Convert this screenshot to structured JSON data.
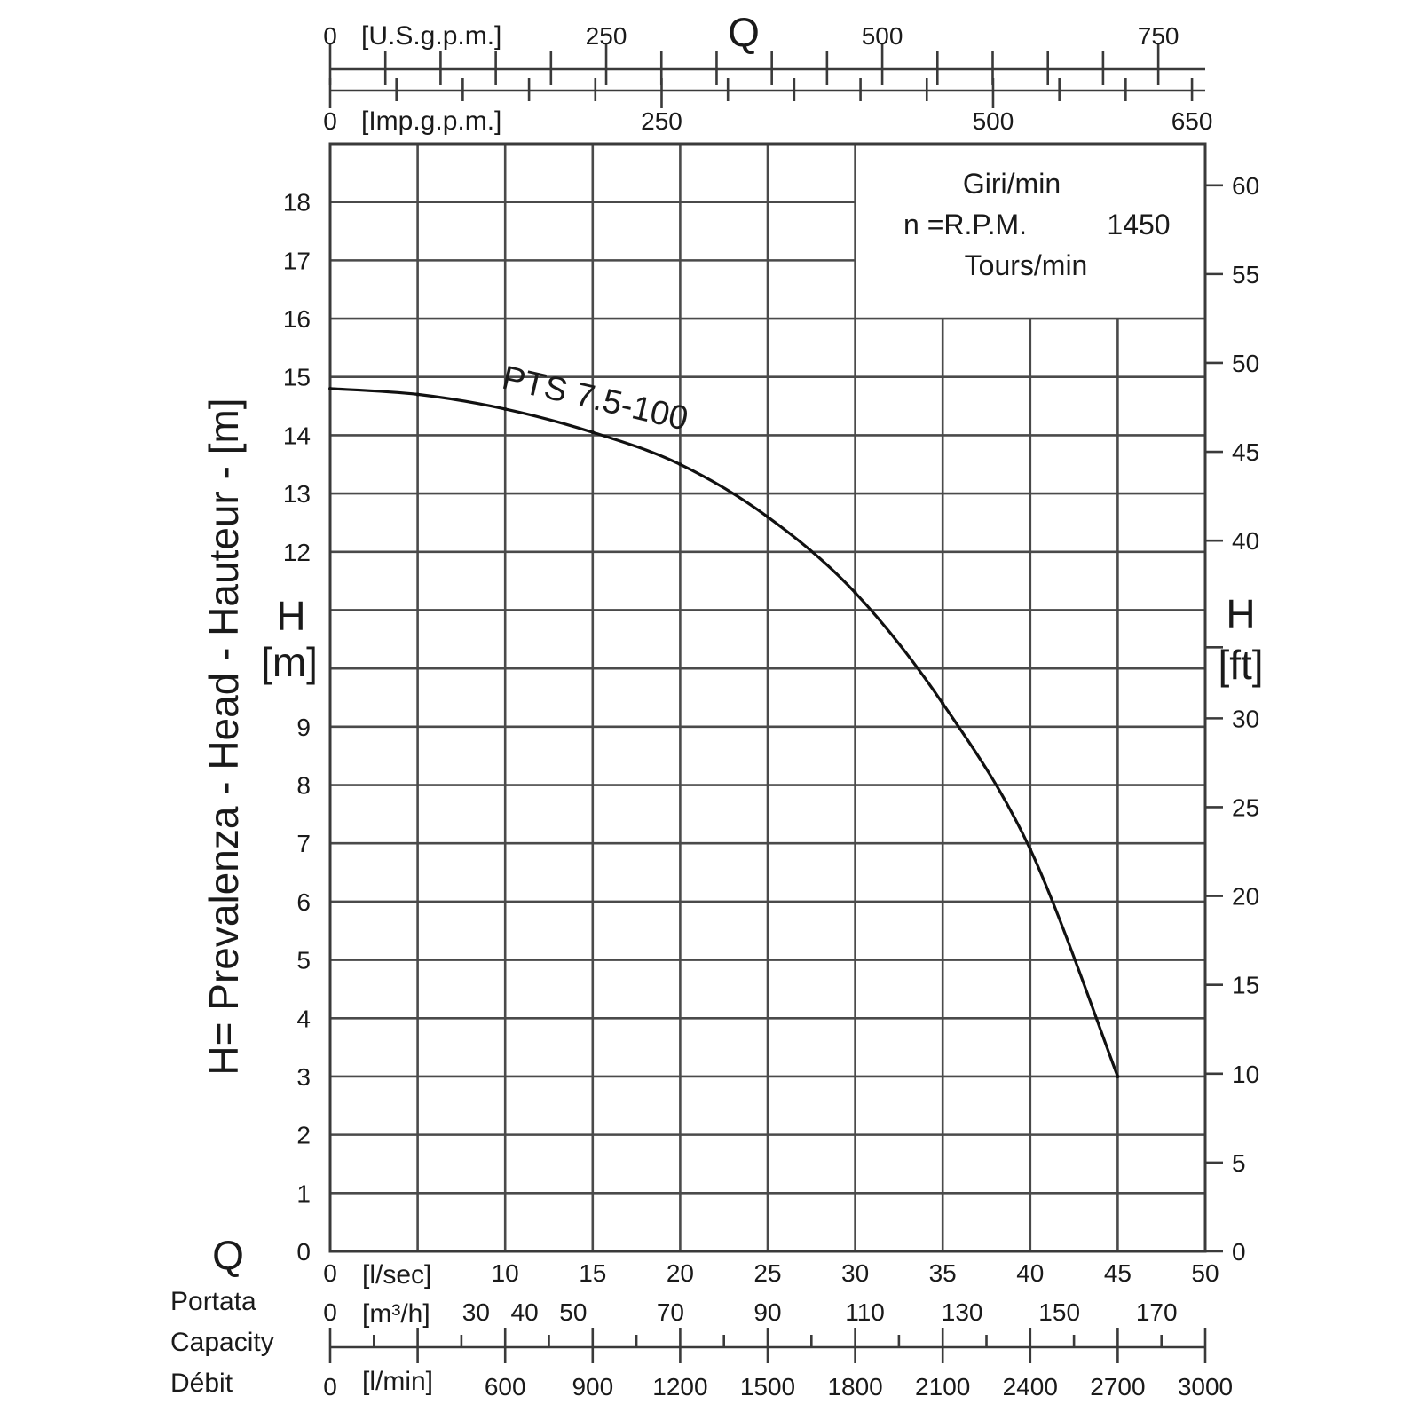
{
  "chart_data": {
    "type": "line",
    "title": "",
    "rpm_box": {
      "line1": "Giri/min",
      "line2_prefix": "n =R.P.M.",
      "rpm_value": "1450",
      "line3": "Tours/min"
    },
    "y_axis_left": {
      "label": "H= Prevalenza - Head - Hauteur - [m]",
      "symbol": "H",
      "unit": "[m]",
      "ticks": [
        "0",
        "1",
        "2",
        "3",
        "4",
        "5",
        "6",
        "7",
        "8",
        "9",
        "12",
        "13",
        "14",
        "15",
        "16",
        "17",
        "18"
      ],
      "tick_values": [
        0,
        1,
        2,
        3,
        4,
        5,
        6,
        7,
        8,
        9,
        12,
        13,
        14,
        15,
        16,
        17,
        18
      ],
      "ylim": [
        0,
        19
      ]
    },
    "y_axis_right": {
      "symbol": "H",
      "unit": "[ft]",
      "ticks": [
        "0",
        "5",
        "10",
        "15",
        "20",
        "25",
        "30",
        "40",
        "45",
        "50",
        "55",
        "60"
      ],
      "tick_values": [
        0,
        5,
        10,
        15,
        20,
        25,
        30,
        40,
        45,
        50,
        55,
        60
      ]
    },
    "x_axis_primary": {
      "unit": "[l/sec]",
      "ticks": [
        "0",
        "10",
        "15",
        "20",
        "25",
        "30",
        "35",
        "40",
        "45",
        "50"
      ],
      "tick_values": [
        0,
        10,
        15,
        20,
        25,
        30,
        35,
        40,
        45,
        50
      ],
      "xlim": [
        0,
        50
      ]
    },
    "x_axis_m3h": {
      "unit": "[m³/h]",
      "ticks": [
        "0",
        "30",
        "40",
        "50",
        "70",
        "90",
        "110",
        "130",
        "150",
        "170"
      ],
      "tick_values": [
        0,
        30,
        40,
        50,
        70,
        90,
        110,
        130,
        150,
        170
      ]
    },
    "x_axis_lmin": {
      "unit": "[l/min]",
      "ticks": [
        "0",
        "600",
        "900",
        "1200",
        "1500",
        "1800",
        "2100",
        "2400",
        "2700",
        "3000"
      ],
      "tick_values": [
        0,
        600,
        900,
        1200,
        1500,
        1800,
        2100,
        2400,
        2700,
        3000
      ]
    },
    "x_axis_usgpm": {
      "unit": "[U.S.g.p.m.]",
      "ticks": [
        "0",
        "250",
        "500",
        "750"
      ],
      "tick_values": [
        0,
        250,
        500,
        750
      ]
    },
    "x_axis_impgpm": {
      "unit": "[Imp.g.p.m.]",
      "ticks": [
        "0",
        "250",
        "500",
        "650"
      ],
      "tick_values": [
        0,
        250,
        500,
        650
      ]
    },
    "bottom_labels": {
      "symbol": "Q",
      "line1": "Portata",
      "line2": "Capacity",
      "line3": "Débit"
    },
    "top_symbol": "Q",
    "series": [
      {
        "name": "PTS 7.5-100",
        "x": [
          0,
          5,
          10,
          15,
          20,
          25,
          30,
          35,
          40,
          45
        ],
        "y": [
          14.8,
          14.7,
          14.45,
          14.05,
          13.5,
          12.6,
          11.3,
          9.4,
          6.9,
          3.0
        ]
      }
    ],
    "grid": true
  }
}
